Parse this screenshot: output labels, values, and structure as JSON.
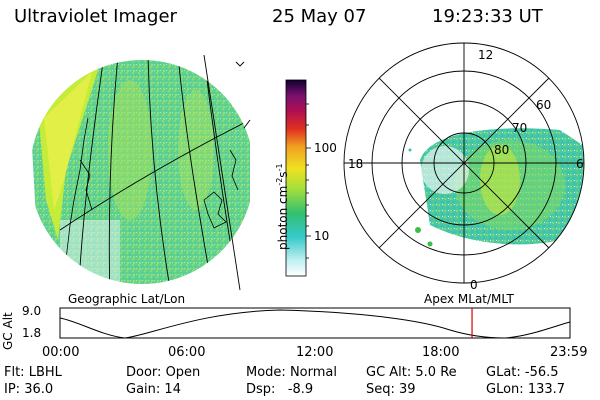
{
  "header": {
    "instrument": "Ultraviolet Imager",
    "date": "25 May 07",
    "time": "19:23:33 UT"
  },
  "left_panel": {
    "label": "Geographic Lat/Lon"
  },
  "right_panel": {
    "label": "Apex MLat/MLT",
    "mlt_labels": {
      "top": "12",
      "left": "18",
      "right": "6",
      "bottom": "0"
    },
    "lat_labels": [
      "60",
      "70",
      "80"
    ]
  },
  "colorbar": {
    "unit_main": "photon cm",
    "unit_sup1": "-2",
    "unit_mid": "s",
    "unit_sup2": "-1",
    "ticks": [
      "100",
      "10"
    ]
  },
  "altitude_plot": {
    "ylabel": "GC Alt",
    "y_ticks": [
      "9.0",
      "1.8"
    ],
    "x_ticks": [
      "00:00",
      "06:00",
      "12:00",
      "18:00",
      "23:59"
    ],
    "current_time_hours": 19.39,
    "marker_color": "#dd0000"
  },
  "status": {
    "row1": [
      {
        "key": "Flt:",
        "value": "LBHL"
      },
      {
        "key": "Door:",
        "value": "Open"
      },
      {
        "key": "Mode:",
        "value": "Normal"
      },
      {
        "key": "GC Alt:",
        "value": "5.0 Re"
      },
      {
        "key": "GLat:",
        "value": "-56.5"
      }
    ],
    "row2": [
      {
        "key": "IP:",
        "value": "36.0"
      },
      {
        "key": "Gain:",
        "value": "14"
      },
      {
        "key": "Dsp:",
        "value": "-8.9"
      },
      {
        "key": "Seq:",
        "value": "39"
      },
      {
        "key": "GLon:",
        "value": "133.7"
      }
    ]
  }
}
